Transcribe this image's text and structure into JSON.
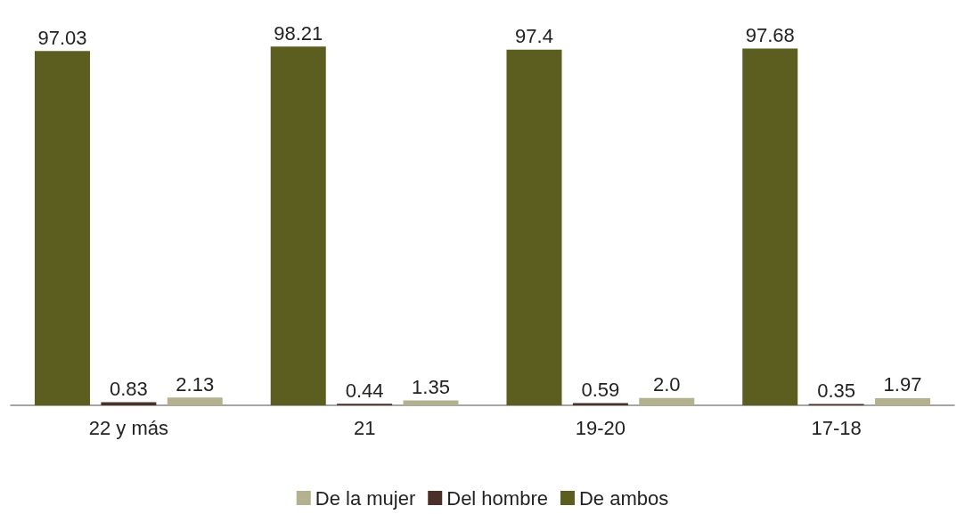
{
  "chart_data": {
    "type": "bar",
    "categories": [
      "22 y más",
      "21",
      "19-20",
      "17-18"
    ],
    "series": [
      {
        "name": "De ambos",
        "color": "#5c5e1f",
        "values": [
          97.03,
          98.21,
          97.4,
          97.68
        ],
        "value_labels": [
          "97.03",
          "98.21",
          "97.4",
          "97.68"
        ]
      },
      {
        "name": "Del hombre",
        "color": "#4b2f29",
        "values": [
          0.83,
          0.44,
          0.59,
          0.35
        ],
        "value_labels": [
          "0.83",
          "0.44",
          "0.59",
          "0.35"
        ]
      },
      {
        "name": "De la mujer",
        "color": "#b4b28e",
        "values": [
          2.13,
          1.35,
          2.0,
          1.97
        ],
        "value_labels": [
          "2.13",
          "1.35",
          "2.0",
          "1.97"
        ]
      }
    ],
    "legend": "bottom",
    "grid": false
  }
}
